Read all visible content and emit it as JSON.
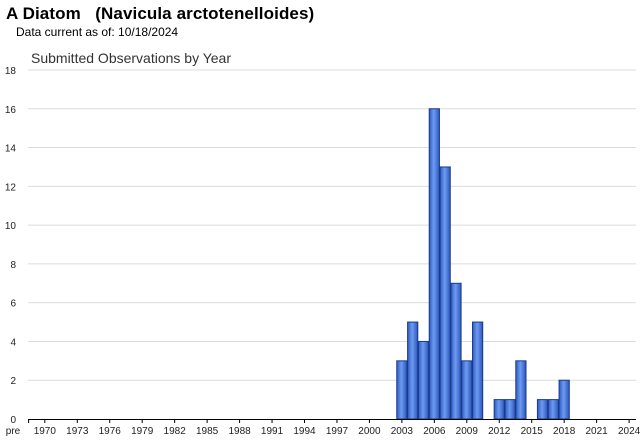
{
  "header": {
    "species_title": "A Diatom   (Navicula arctotenelloides)",
    "data_current": "Data current as of: 10/18/2024"
  },
  "chart_data": {
    "type": "bar",
    "title": "Submitted Observations by Year",
    "xlabel": "",
    "ylabel": "",
    "ylim": [
      0,
      18
    ],
    "yticks": [
      0,
      2,
      4,
      6,
      8,
      10,
      12,
      14,
      16,
      18
    ],
    "grid": true,
    "categories": [
      "pre 1970",
      "1970",
      "1971",
      "1972",
      "1973",
      "1974",
      "1975",
      "1976",
      "1977",
      "1978",
      "1979",
      "1980",
      "1981",
      "1982",
      "1983",
      "1984",
      "1985",
      "1986",
      "1987",
      "1988",
      "1989",
      "1990",
      "1991",
      "1992",
      "1993",
      "1994",
      "1995",
      "1996",
      "1997",
      "1998",
      "1999",
      "2000",
      "2001",
      "2002",
      "2003",
      "2004",
      "2005",
      "2006",
      "2007",
      "2008",
      "2009",
      "2010",
      "2011",
      "2012",
      "2013",
      "2014",
      "2015",
      "2016",
      "2017",
      "2018",
      "2019",
      "2020",
      "2021",
      "2022",
      "2023",
      "2024"
    ],
    "xtick_labels": [
      "pre",
      "1970",
      "1973",
      "1976",
      "1979",
      "1982",
      "1985",
      "1988",
      "1991",
      "1994",
      "1997",
      "2000",
      "2003",
      "2006",
      "2009",
      "2012",
      "2015",
      "2018",
      "2021",
      "2024"
    ],
    "values": [
      0,
      0,
      0,
      0,
      0,
      0,
      0,
      0,
      0,
      0,
      0,
      0,
      0,
      0,
      0,
      0,
      0,
      0,
      0,
      0,
      0,
      0,
      0,
      0,
      0,
      0,
      0,
      0,
      0,
      0,
      0,
      0,
      0,
      0,
      3,
      5,
      4,
      16,
      13,
      7,
      3,
      5,
      0,
      1,
      1,
      3,
      0,
      1,
      1,
      2,
      0,
      0,
      0,
      0,
      0,
      0
    ],
    "bar_color": "#3d6fd6",
    "bar_stroke": "#1a3a8c"
  }
}
